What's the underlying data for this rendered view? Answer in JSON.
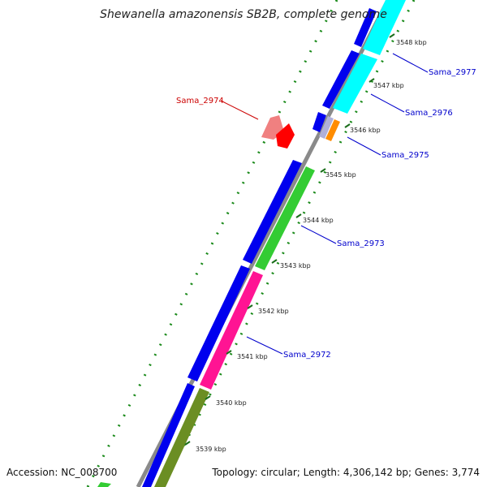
{
  "title": "Shewanella amazonensis SB2B, complete genome",
  "footer": {
    "accession": "Accession: NC_008700",
    "summary": "Topology: circular; Length: 4,306,142 bp; Genes: 3,774"
  },
  "ticks": [
    "3548 kbp",
    "3547 kbp",
    "3546 kbp",
    "3545 kbp",
    "3544 kbp",
    "3543 kbp",
    "3542 kbp",
    "3541 kbp",
    "3540 kbp",
    "3539 kbp"
  ],
  "gene_labels": [
    {
      "id": "sama-2977",
      "text": "Sama_2977"
    },
    {
      "id": "sama-2976",
      "text": "Sama_2976"
    },
    {
      "id": "sama-2975",
      "text": "Sama_2975"
    },
    {
      "id": "sama-2974",
      "text": "Sama_2974"
    },
    {
      "id": "sama-2973",
      "text": "Sama_2973"
    },
    {
      "id": "sama-2972",
      "text": "Sama_2972"
    }
  ],
  "colors": {
    "gc_dot": "#1a8a1a",
    "backbone": "#8a8a8a",
    "cds_strand": "#0000ee",
    "label_forward": "#0000cc",
    "label_reverse": "#cc0000"
  }
}
